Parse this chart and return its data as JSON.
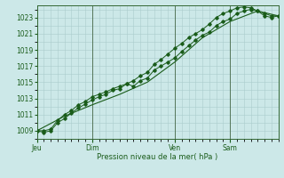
{
  "title": "",
  "xlabel": "Pression niveau de la mer( hPa )",
  "background_color": "#cce8e8",
  "plot_bg_color": "#cce8e8",
  "grid_color": "#aacccc",
  "line_color": "#1a5c1a",
  "ylim": [
    1008.0,
    1024.5
  ],
  "yticks": [
    1009,
    1011,
    1013,
    1015,
    1017,
    1019,
    1021,
    1023
  ],
  "xlim": [
    0,
    210
  ],
  "day_labels": [
    "Jeu",
    "Dim",
    "Ven",
    "Sam"
  ],
  "day_positions": [
    0,
    48,
    120,
    168
  ],
  "series1": [
    [
      0,
      1009.0
    ],
    [
      6,
      1008.8
    ],
    [
      12,
      1009.0
    ],
    [
      18,
      1010.0
    ],
    [
      24,
      1010.5
    ],
    [
      30,
      1011.2
    ],
    [
      36,
      1011.8
    ],
    [
      42,
      1012.3
    ],
    [
      48,
      1012.8
    ],
    [
      54,
      1013.2
    ],
    [
      60,
      1013.5
    ],
    [
      66,
      1014.0
    ],
    [
      72,
      1014.2
    ],
    [
      78,
      1014.8
    ],
    [
      84,
      1014.5
    ],
    [
      90,
      1015.2
    ],
    [
      96,
      1015.5
    ],
    [
      102,
      1016.5
    ],
    [
      108,
      1017.0
    ],
    [
      114,
      1017.5
    ],
    [
      120,
      1018.0
    ],
    [
      126,
      1018.8
    ],
    [
      132,
      1019.5
    ],
    [
      138,
      1020.2
    ],
    [
      144,
      1020.8
    ],
    [
      150,
      1021.2
    ],
    [
      156,
      1022.0
    ],
    [
      162,
      1022.5
    ],
    [
      168,
      1022.8
    ],
    [
      174,
      1023.5
    ],
    [
      180,
      1023.8
    ],
    [
      186,
      1024.0
    ],
    [
      192,
      1023.8
    ],
    [
      198,
      1023.5
    ],
    [
      204,
      1023.2
    ],
    [
      210,
      1023.2
    ]
  ],
  "series2": [
    [
      0,
      1009.0
    ],
    [
      24,
      1010.8
    ],
    [
      48,
      1012.2
    ],
    [
      72,
      1013.5
    ],
    [
      96,
      1015.0
    ],
    [
      120,
      1017.5
    ],
    [
      144,
      1020.5
    ],
    [
      168,
      1022.5
    ],
    [
      192,
      1023.8
    ],
    [
      210,
      1023.2
    ]
  ],
  "series3": [
    [
      0,
      1009.0
    ],
    [
      6,
      1009.0
    ],
    [
      12,
      1009.2
    ],
    [
      18,
      1010.3
    ],
    [
      24,
      1011.0
    ],
    [
      30,
      1011.5
    ],
    [
      36,
      1012.2
    ],
    [
      42,
      1012.6
    ],
    [
      48,
      1013.2
    ],
    [
      54,
      1013.5
    ],
    [
      60,
      1013.8
    ],
    [
      66,
      1014.2
    ],
    [
      72,
      1014.5
    ],
    [
      78,
      1014.8
    ],
    [
      84,
      1015.2
    ],
    [
      90,
      1015.8
    ],
    [
      96,
      1016.2
    ],
    [
      102,
      1017.2
    ],
    [
      108,
      1017.8
    ],
    [
      114,
      1018.5
    ],
    [
      120,
      1019.2
    ],
    [
      126,
      1019.8
    ],
    [
      132,
      1020.5
    ],
    [
      138,
      1021.0
    ],
    [
      144,
      1021.5
    ],
    [
      150,
      1022.2
    ],
    [
      156,
      1023.0
    ],
    [
      162,
      1023.5
    ],
    [
      168,
      1023.8
    ],
    [
      174,
      1024.2
    ],
    [
      180,
      1024.3
    ],
    [
      186,
      1024.2
    ],
    [
      192,
      1023.8
    ],
    [
      198,
      1023.2
    ],
    [
      204,
      1023.0
    ],
    [
      210,
      1023.2
    ]
  ]
}
